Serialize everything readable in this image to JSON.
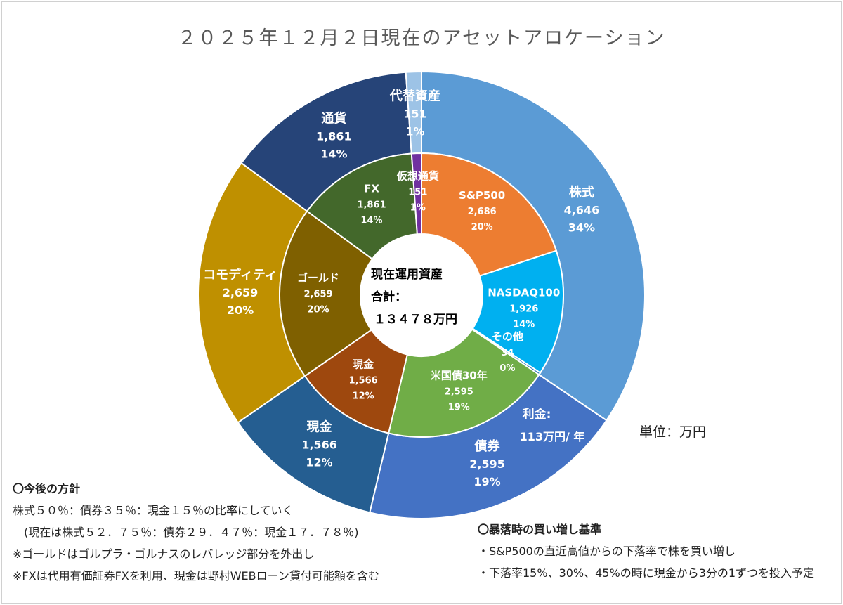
{
  "title": "２０２５年１２月２日現在のアセットアロケーション",
  "unit_label": "単位：万円",
  "center": {
    "line1": "現在運用資産",
    "line2": "合計：",
    "line3": "１３４７８万円"
  },
  "interest": {
    "line1": "利金:",
    "line2": "113万円/ 年"
  },
  "notes_left": {
    "heading": "〇今後の方針",
    "lines": [
      "株式５０％：債券３５％：現金１５％の比率にしていく",
      "(現在は株式５２．７５％：債券２９．４７％：現金１７．７８％)",
      "※ゴールドはゴルプラ・ゴルナスのレバレッジ部分を外出し",
      "※FXは代用有価証券FXを利用、現金は野村WEBローン貸付可能額を含む"
    ]
  },
  "notes_right": {
    "heading": "〇暴落時の買い増し基準",
    "lines": [
      "・S&P500の直近高値からの下落率で株を買い増し",
      "・下落率15%、30%、45%の時に現金から3分の1ずつを投入予定"
    ]
  },
  "chart_data": {
    "type": "pie",
    "subtype": "double-donut",
    "title": "２０２５年１２月２日現在のアセットアロケーション",
    "unit": "万円",
    "total": 13478,
    "outer_ring": [
      {
        "label": "株式",
        "value": 4646,
        "pct": "34%",
        "color": "#5B9BD5"
      },
      {
        "label": "債券",
        "value": 2595,
        "pct": "19%",
        "color": "#4472C4"
      },
      {
        "label": "現金",
        "value": 1566,
        "pct": "12%",
        "color": "#255E91"
      },
      {
        "label": "コモディティ",
        "value": 2659,
        "pct": "20%",
        "color": "#BF9000"
      },
      {
        "label": "通貨",
        "value": 1861,
        "pct": "14%",
        "color": "#264478"
      },
      {
        "label": "代替資産",
        "value": 151,
        "pct": "1%",
        "color": "#9DC3E6"
      }
    ],
    "inner_ring": [
      {
        "label": "S&P500",
        "value": 2686,
        "pct": "20%",
        "color": "#ED7D31"
      },
      {
        "label": "NASDAQ100",
        "value": 1926,
        "pct": "14%",
        "color": "#00B0F0"
      },
      {
        "label": "その他",
        "value": 34,
        "pct": "0%",
        "color": "#2E75B6"
      },
      {
        "label": "米国債30年",
        "value": 2595,
        "pct": "19%",
        "color": "#70AD47"
      },
      {
        "label": "現金",
        "value": 1566,
        "pct": "12%",
        "color": "#9E480E"
      },
      {
        "label": "ゴールド",
        "value": 2659,
        "pct": "20%",
        "color": "#7F6000"
      },
      {
        "label": "FX",
        "value": 1861,
        "pct": "14%",
        "color": "#43682B"
      },
      {
        "label": "仮想通貨",
        "value": 151,
        "pct": "1%",
        "color": "#7030A0"
      }
    ]
  }
}
